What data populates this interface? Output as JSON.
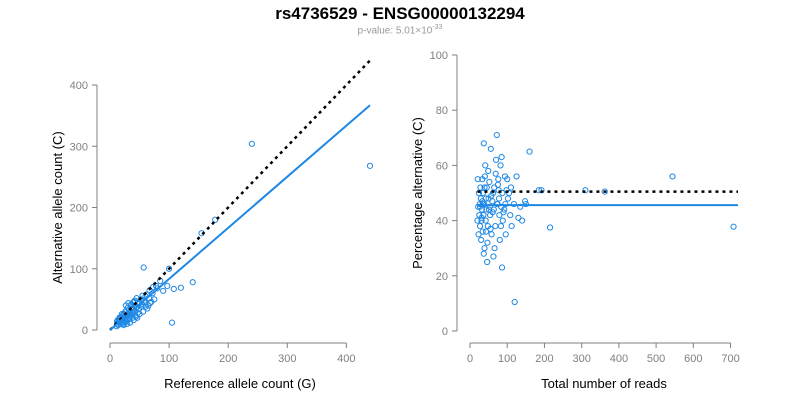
{
  "header": {
    "title": "rs4736529 - ENSG00000132294",
    "pvalue_prefix": "p-value: 5.01×10",
    "pvalue_exponent": "-33"
  },
  "colors": {
    "points": "#1e88e5",
    "fit_line": "#1e88e5",
    "reference_line": "#000000",
    "axes": "#7f7f7f"
  },
  "chart_data": [
    {
      "type": "scatter",
      "xlabel": "Reference allele count (G)",
      "ylabel": "Alternative allele count (C)",
      "xlim": [
        0,
        440
      ],
      "ylim": [
        0,
        400
      ],
      "xticks": [
        0,
        100,
        200,
        300,
        400
      ],
      "yticks": [
        0,
        100,
        200,
        300,
        400
      ],
      "grid": false,
      "points": [
        [
          440,
          268
        ],
        [
          240,
          304
        ],
        [
          100,
          100
        ],
        [
          57,
          102
        ],
        [
          178,
          180
        ],
        [
          155,
          158
        ],
        [
          97,
          72
        ],
        [
          140,
          78
        ],
        [
          120,
          69
        ],
        [
          108,
          67
        ],
        [
          105,
          12
        ],
        [
          85,
          80
        ],
        [
          78,
          72
        ],
        [
          73,
          70
        ],
        [
          67,
          65
        ],
        [
          62,
          58
        ],
        [
          60,
          55
        ],
        [
          58,
          48
        ],
        [
          55,
          56
        ],
        [
          52,
          50
        ],
        [
          50,
          44
        ],
        [
          48,
          42
        ],
        [
          46,
          38
        ],
        [
          45,
          52
        ],
        [
          44,
          36
        ],
        [
          42,
          40
        ],
        [
          41,
          30
        ],
        [
          40,
          33
        ],
        [
          39,
          45
        ],
        [
          38,
          28
        ],
        [
          37,
          26
        ],
        [
          36,
          35
        ],
        [
          35,
          22
        ],
        [
          34,
          30
        ],
        [
          33,
          25
        ],
        [
          32,
          20
        ],
        [
          31,
          28
        ],
        [
          30,
          18
        ],
        [
          29,
          24
        ],
        [
          28,
          32
        ],
        [
          27,
          14
        ],
        [
          26,
          20
        ],
        [
          25,
          22
        ],
        [
          24,
          16
        ],
        [
          23,
          26
        ],
        [
          22,
          12
        ],
        [
          21,
          18
        ],
        [
          20,
          15
        ],
        [
          19,
          22
        ],
        [
          18,
          10
        ],
        [
          17,
          14
        ],
        [
          16,
          20
        ],
        [
          15,
          12
        ],
        [
          14,
          8
        ],
        [
          13,
          16
        ],
        [
          12,
          10
        ],
        [
          70,
          46
        ],
        [
          65,
          40
        ],
        [
          63,
          35
        ],
        [
          56,
          30
        ],
        [
          53,
          38
        ],
        [
          47,
          28
        ],
        [
          43,
          24
        ],
        [
          49,
          34
        ],
        [
          54,
          42
        ],
        [
          59,
          45
        ],
        [
          66,
          52
        ],
        [
          72,
          60
        ],
        [
          80,
          68
        ],
        [
          90,
          64
        ],
        [
          36,
          42
        ],
        [
          30,
          36
        ],
        [
          26,
          30
        ],
        [
          22,
          24
        ],
        [
          18,
          20
        ],
        [
          24,
          10
        ],
        [
          28,
          14
        ],
        [
          33,
          18
        ],
        [
          38,
          20
        ],
        [
          44,
          22
        ],
        [
          50,
          26
        ],
        [
          34,
          12
        ],
        [
          40,
          16
        ],
        [
          46,
          20
        ],
        [
          20,
          26
        ],
        [
          16,
          18
        ],
        [
          12,
          14
        ],
        [
          27,
          40
        ],
        [
          31,
          44
        ],
        [
          42,
          48
        ],
        [
          60,
          38
        ],
        [
          68,
          44
        ],
        [
          75,
          50
        ],
        [
          35,
          40
        ],
        [
          41,
          46
        ],
        [
          29,
          10
        ],
        [
          23,
          8
        ],
        [
          19,
          12
        ],
        [
          15,
          16
        ],
        [
          11,
          6
        ]
      ],
      "fit_line": [
        [
          0,
          0
        ],
        [
          440,
          367
        ]
      ],
      "reference_line": [
        [
          0,
          0
        ],
        [
          440,
          440
        ]
      ]
    },
    {
      "type": "scatter",
      "xlabel": "Total number of reads",
      "ylabel": "Percentage alternative (C)",
      "xlim": [
        0,
        720
      ],
      "ylim": [
        0,
        100
      ],
      "xticks": [
        0,
        100,
        200,
        300,
        400,
        500,
        600,
        700
      ],
      "yticks": [
        0,
        20,
        40,
        60,
        80,
        100
      ],
      "grid": false,
      "points": [
        [
          708,
          37.8
        ],
        [
          544,
          56
        ],
        [
          362,
          50.5
        ],
        [
          310,
          51
        ],
        [
          215,
          37.5
        ],
        [
          192,
          51
        ],
        [
          185,
          51
        ],
        [
          160,
          65
        ],
        [
          150,
          46
        ],
        [
          148,
          47
        ],
        [
          140,
          40
        ],
        [
          135,
          45
        ],
        [
          130,
          41
        ],
        [
          120,
          10.5
        ],
        [
          118,
          46
        ],
        [
          112,
          38
        ],
        [
          108,
          42
        ],
        [
          105,
          50
        ],
        [
          102,
          48
        ],
        [
          98,
          51
        ],
        [
          95,
          46
        ],
        [
          92,
          44
        ],
        [
          90,
          43
        ],
        [
          88,
          40
        ],
        [
          86,
          23
        ],
        [
          84,
          45
        ],
        [
          82,
          60
        ],
        [
          80,
          33
        ],
        [
          78,
          48
        ],
        [
          76,
          55
        ],
        [
          74,
          46
        ],
        [
          72,
          71
        ],
        [
          70,
          62
        ],
        [
          68,
          38
        ],
        [
          66,
          30
        ],
        [
          64,
          44
        ],
        [
          62,
          50
        ],
        [
          60,
          47
        ],
        [
          58,
          35
        ],
        [
          56,
          66
        ],
        [
          54,
          42
        ],
        [
          52,
          54
        ],
        [
          50,
          48
        ],
        [
          48,
          38
        ],
        [
          46,
          25
        ],
        [
          45,
          52
        ],
        [
          44,
          44
        ],
        [
          42,
          40
        ],
        [
          41,
          60
        ],
        [
          40,
          56
        ],
        [
          39,
          30
        ],
        [
          38,
          46
        ],
        [
          37,
          68
        ],
        [
          36,
          42
        ],
        [
          35,
          50
        ],
        [
          34,
          36
        ],
        [
          33,
          55
        ],
        [
          32,
          44
        ],
        [
          31,
          40
        ],
        [
          30,
          33
        ],
        [
          29,
          48
        ],
        [
          28,
          52
        ],
        [
          27,
          38
        ],
        [
          26,
          46
        ],
        [
          25,
          42
        ],
        [
          24,
          50
        ],
        [
          23,
          35
        ],
        [
          22,
          45
        ],
        [
          21,
          55
        ],
        [
          20,
          40
        ],
        [
          100,
          55
        ],
        [
          110,
          52
        ],
        [
          125,
          56
        ],
        [
          96,
          35
        ],
        [
          94,
          56
        ],
        [
          87,
          50
        ],
        [
          83,
          38
        ],
        [
          79,
          42
        ],
        [
          77,
          51
        ],
        [
          73,
          46
        ],
        [
          69,
          57
        ],
        [
          65,
          52
        ],
        [
          61,
          43
        ],
        [
          57,
          49
        ],
        [
          53,
          45
        ],
        [
          49,
          58
        ],
        [
          47,
          32
        ],
        [
          43,
          48
        ],
        [
          39,
          52
        ],
        [
          35,
          46
        ],
        [
          31,
          41
        ],
        [
          27,
          45
        ],
        [
          85,
          63
        ],
        [
          75,
          53
        ],
        [
          63,
          27
        ],
        [
          55,
          37
        ],
        [
          51,
          44
        ],
        [
          43,
          36
        ],
        [
          37,
          28
        ],
        [
          33,
          47
        ]
      ],
      "fit_line": [
        [
          20,
          45.6
        ],
        [
          720,
          45.6
        ]
      ],
      "reference_line": [
        [
          20,
          50.5
        ],
        [
          720,
          50.5
        ]
      ]
    }
  ]
}
